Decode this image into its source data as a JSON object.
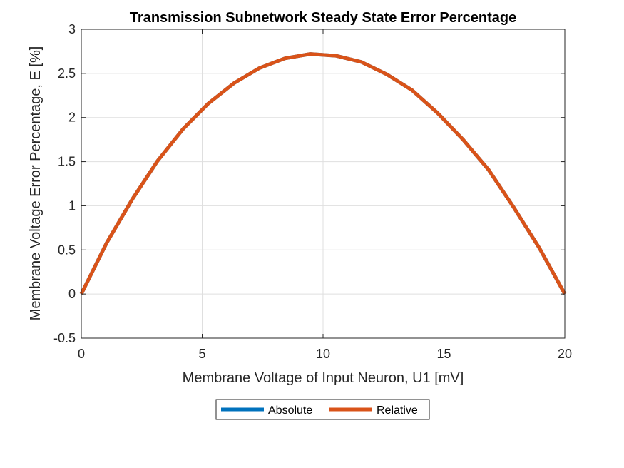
{
  "chart_data": {
    "type": "line",
    "title": "Transmission Subnetwork Steady State Error Percentage",
    "xlabel": "Membrane Voltage of Input Neuron, U1 [mV]",
    "ylabel": "Membrane Voltage Error Percentage, E [%]",
    "xlim": [
      0,
      20
    ],
    "ylim": [
      -0.5,
      3
    ],
    "xticks": [
      0,
      5,
      10,
      15,
      20
    ],
    "xtick_labels": [
      "0",
      "5",
      "10",
      "15",
      "20"
    ],
    "yticks": [
      -0.5,
      0,
      0.5,
      1,
      1.5,
      2,
      2.5,
      3
    ],
    "ytick_labels": [
      "-0.5",
      "0",
      "0.5",
      "1",
      "1.5",
      "2",
      "2.5",
      "3"
    ],
    "grid": true,
    "legend_placement": "bottom-outside",
    "x": [
      0,
      1.05,
      2.1,
      3.16,
      4.21,
      5.26,
      6.32,
      7.37,
      8.42,
      9.47,
      10.53,
      11.58,
      12.63,
      13.68,
      14.74,
      15.79,
      16.84,
      17.89,
      18.95,
      20
    ],
    "series": [
      {
        "name": "Absolute",
        "color": "#0072BD",
        "values": [
          0,
          0.58,
          1.07,
          1.51,
          1.87,
          2.16,
          2.39,
          2.56,
          2.67,
          2.72,
          2.7,
          2.63,
          2.49,
          2.31,
          2.05,
          1.75,
          1.41,
          0.98,
          0.52,
          0
        ]
      },
      {
        "name": "Relative",
        "color": "#D95319",
        "values": [
          0,
          0.58,
          1.07,
          1.51,
          1.87,
          2.16,
          2.39,
          2.56,
          2.67,
          2.72,
          2.7,
          2.63,
          2.49,
          2.31,
          2.05,
          1.75,
          1.41,
          0.98,
          0.52,
          0
        ]
      }
    ]
  }
}
